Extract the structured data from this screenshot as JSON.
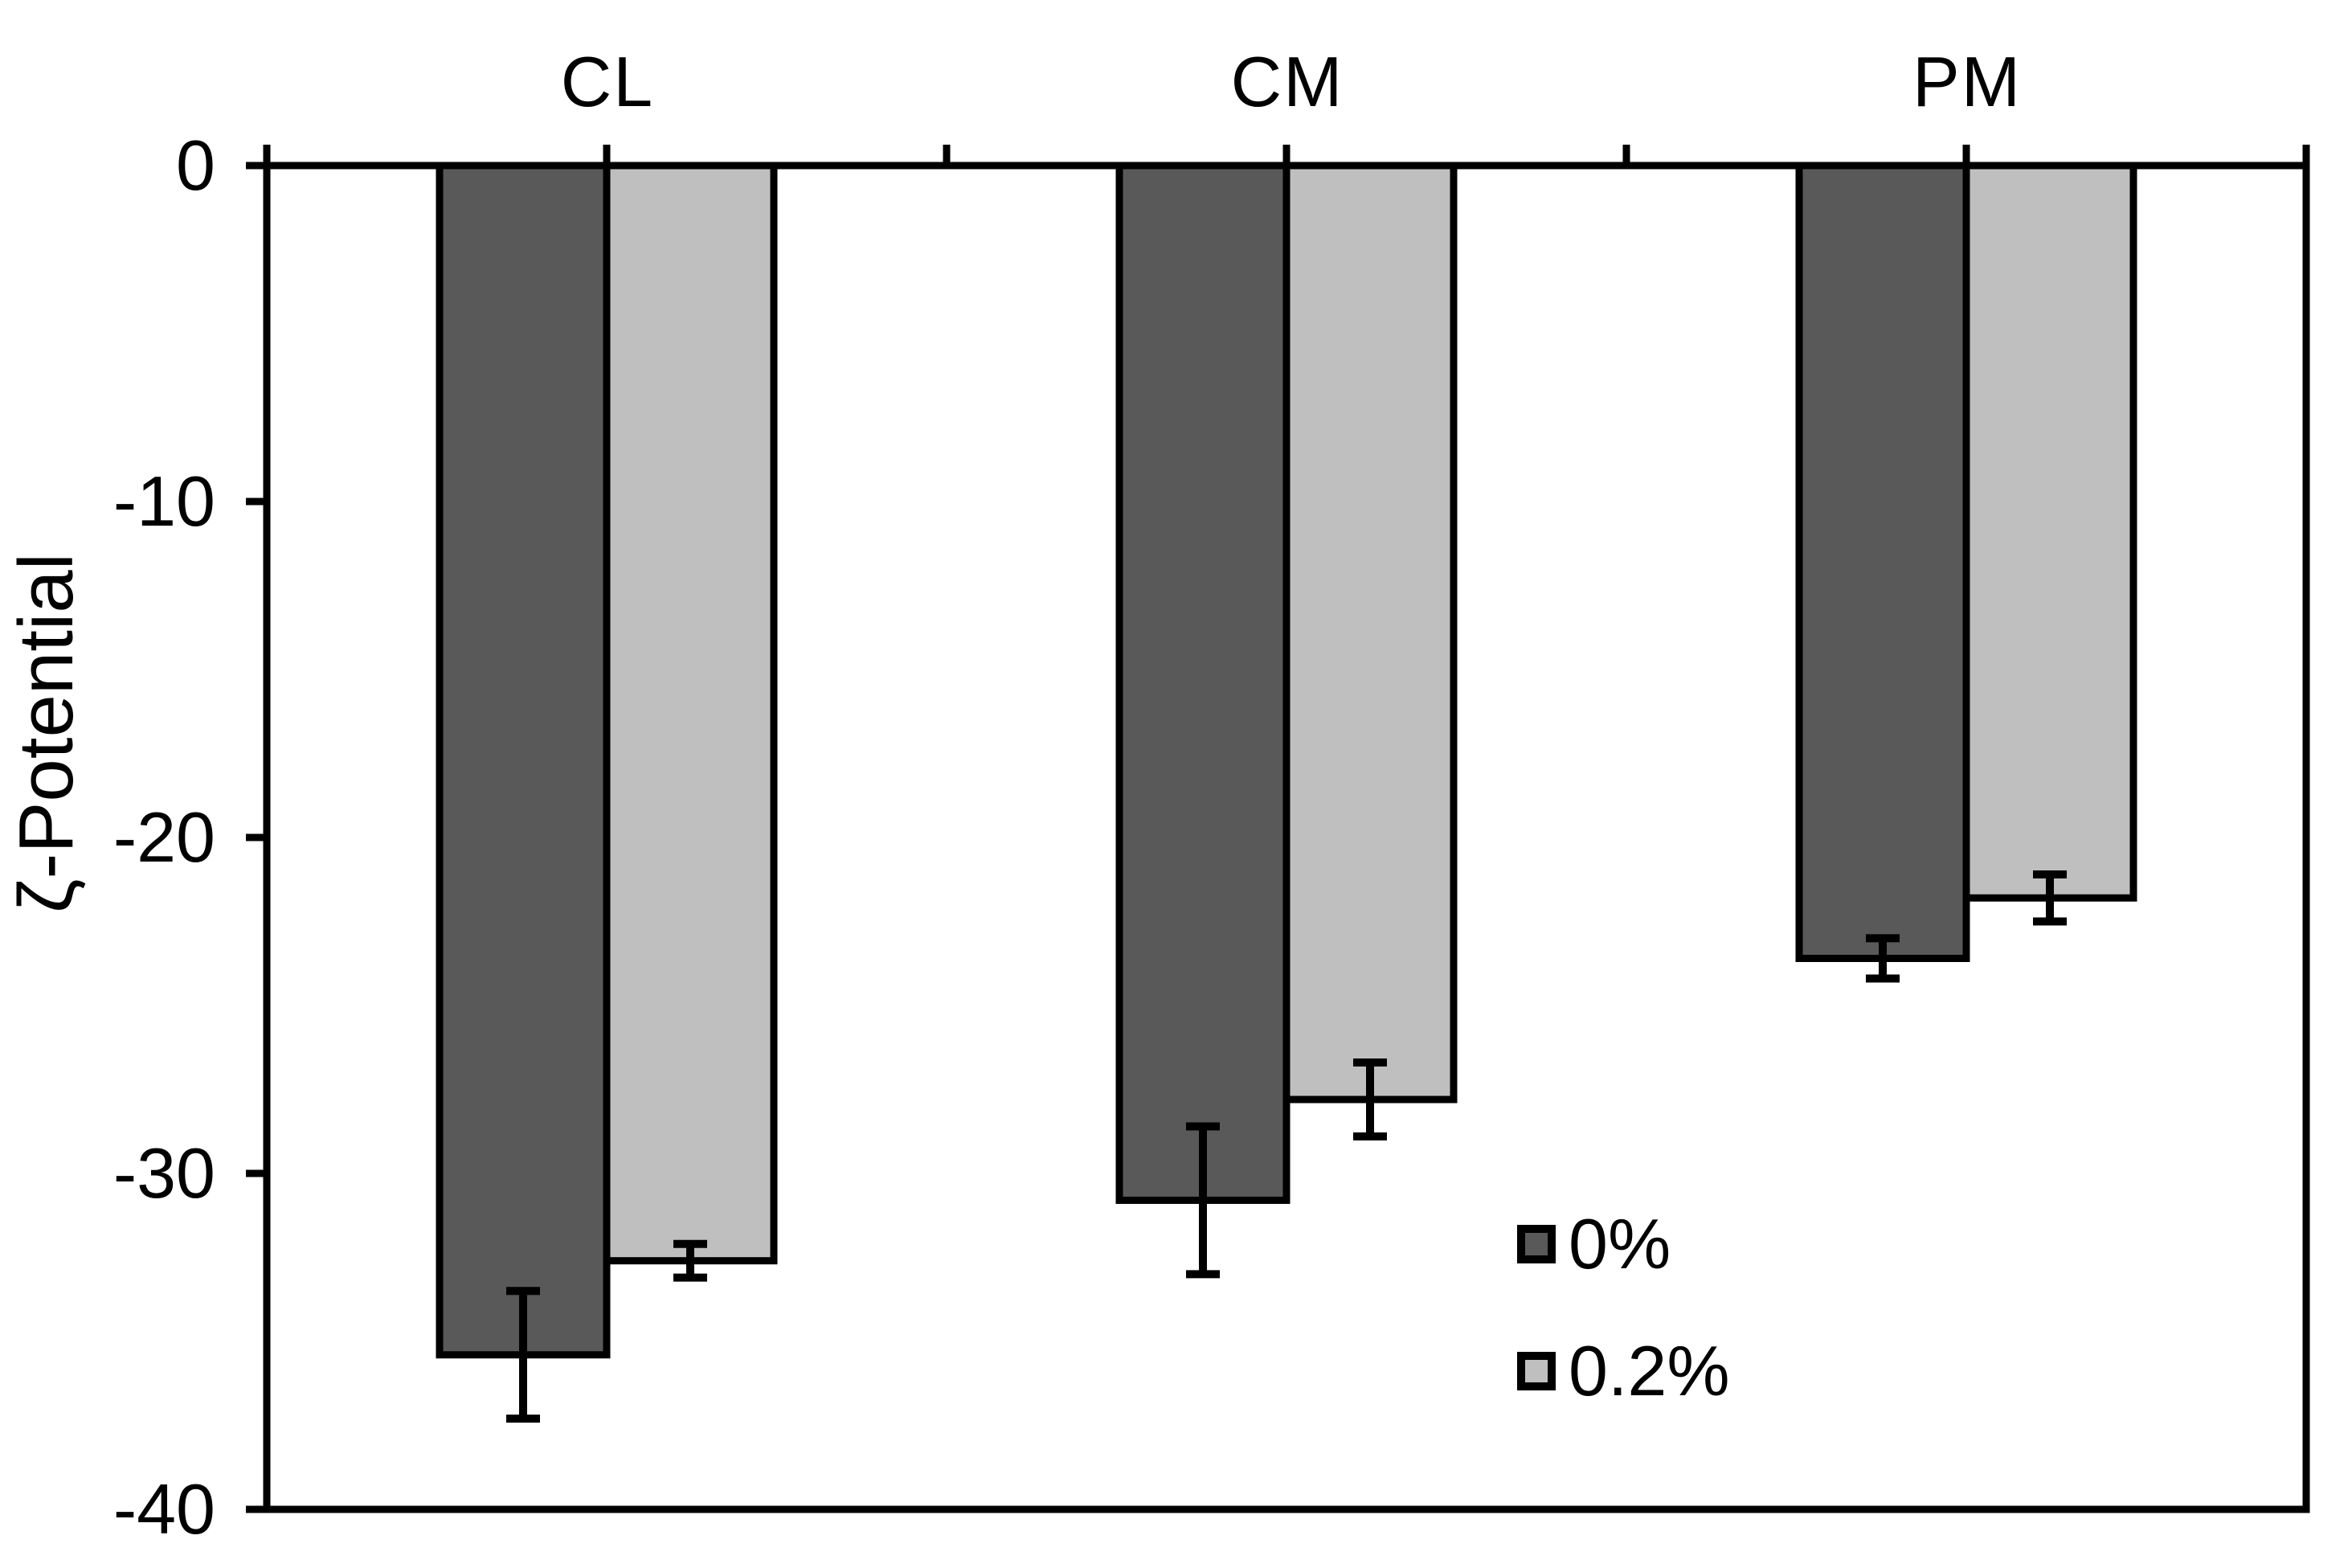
{
  "chart_data": {
    "type": "bar",
    "title": "",
    "categories": [
      "CL",
      "CM",
      "PM"
    ],
    "series": [
      {
        "name": "0%",
        "color": "#595959",
        "values": [
          -35.4,
          -30.8,
          -23.6
        ],
        "errors": [
          1.9,
          2.2,
          0.6
        ]
      },
      {
        "name": "0.2%",
        "color": "#BFBFBF",
        "values": [
          -32.6,
          -27.8,
          -21.8
        ],
        "errors": [
          0.5,
          1.1,
          0.7
        ]
      }
    ],
    "xlabel": "",
    "ylabel": "ζ-Potential",
    "ylim": [
      -40,
      0
    ],
    "yticks": [
      0,
      -10,
      -20,
      -30,
      -40
    ],
    "ytick_labels": [
      "0",
      "-10",
      "-20",
      "-30",
      "-40"
    ],
    "grid": false,
    "legend_position": "inside-lower-right",
    "axis_color": "#000000",
    "error_bar_color": "#000000",
    "background_color": "#ffffff"
  }
}
